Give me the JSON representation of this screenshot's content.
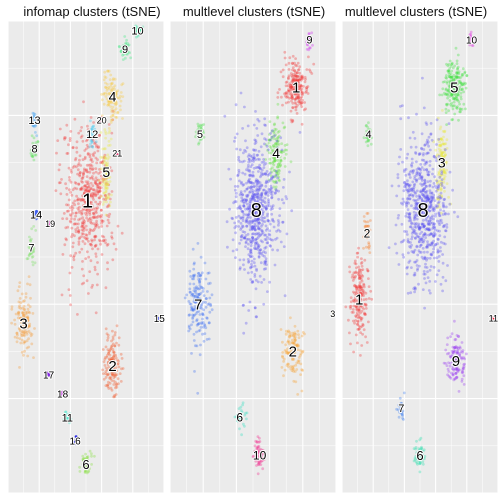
{
  "chart_data": [
    {
      "type": "scatter",
      "title": "infomap clusters (tSNE)",
      "xlim": [
        0,
        100
      ],
      "ylim": [
        0,
        100
      ],
      "grid": true,
      "clusters": [
        {
          "label": "1",
          "color": "#f23a3a",
          "cx": 51,
          "cy": 62,
          "sx": 13,
          "sy": 13,
          "n": 520,
          "font": 20
        },
        {
          "label": "2",
          "color": "#f25a2a",
          "cx": 67,
          "cy": 27,
          "sx": 5,
          "sy": 5,
          "n": 130,
          "font": 15
        },
        {
          "label": "3",
          "color": "#f39a3a",
          "cx": 10,
          "cy": 36,
          "sx": 5,
          "sy": 6,
          "n": 120,
          "font": 15
        },
        {
          "label": "4",
          "color": "#f5c842",
          "cx": 67,
          "cy": 84,
          "sx": 5,
          "sy": 4,
          "n": 110,
          "font": 14
        },
        {
          "label": "5",
          "color": "#e8e84a",
          "cx": 63,
          "cy": 68,
          "sx": 3,
          "sy": 6,
          "n": 90,
          "font": 14
        },
        {
          "label": "6",
          "color": "#88e040",
          "cx": 50,
          "cy": 6,
          "sx": 3,
          "sy": 2,
          "n": 45,
          "font": 13
        },
        {
          "label": "7",
          "color": "#78e060",
          "cx": 15,
          "cy": 52,
          "sx": 2,
          "sy": 3,
          "n": 30,
          "font": 11
        },
        {
          "label": "8",
          "color": "#50e050",
          "cx": 17,
          "cy": 73,
          "sx": 2,
          "sy": 2,
          "n": 25,
          "font": 11
        },
        {
          "label": "9",
          "color": "#40e880",
          "cx": 75,
          "cy": 94,
          "sx": 3,
          "sy": 2,
          "n": 40,
          "font": 11
        },
        {
          "label": "10",
          "color": "#30e8a0",
          "cx": 83,
          "cy": 98,
          "sx": 2,
          "sy": 1,
          "n": 25,
          "font": 11
        },
        {
          "label": "11",
          "color": "#30e8c8",
          "cx": 38,
          "cy": 16,
          "sx": 2,
          "sy": 1,
          "n": 20,
          "font": 11
        },
        {
          "label": "12",
          "color": "#40c8f0",
          "cx": 54,
          "cy": 76,
          "sx": 2,
          "sy": 3,
          "n": 25,
          "font": 11
        },
        {
          "label": "13",
          "color": "#40a0f0",
          "cx": 17,
          "cy": 79,
          "sx": 1,
          "sy": 2,
          "n": 22,
          "font": 11
        },
        {
          "label": "14",
          "color": "#4060f0",
          "cx": 18,
          "cy": 59,
          "sx": 1,
          "sy": 1,
          "n": 8,
          "font": 11
        },
        {
          "label": "15",
          "color": "#2030f0",
          "cx": 97,
          "cy": 37,
          "sx": 0.5,
          "sy": 0.5,
          "n": 3,
          "font": 10
        },
        {
          "label": "16",
          "color": "#2020e0",
          "cx": 43,
          "cy": 11,
          "sx": 0.8,
          "sy": 0.8,
          "n": 6,
          "font": 10
        },
        {
          "label": "17",
          "color": "#8020e0",
          "cx": 26,
          "cy": 25,
          "sx": 0.5,
          "sy": 0.5,
          "n": 3,
          "font": 10
        },
        {
          "label": "18",
          "color": "#c020e0",
          "cx": 35,
          "cy": 21,
          "sx": 0.5,
          "sy": 0.5,
          "n": 3,
          "font": 10
        },
        {
          "label": "19",
          "color": "#e020c0",
          "cx": 27,
          "cy": 57,
          "sx": 0.5,
          "sy": 0.5,
          "n": 3,
          "font": 9
        },
        {
          "label": "20",
          "color": "#e02090",
          "cx": 60,
          "cy": 79,
          "sx": 0.5,
          "sy": 0.5,
          "n": 3,
          "font": 9
        },
        {
          "label": "21",
          "color": "#e02060",
          "cx": 70,
          "cy": 72,
          "sx": 0.5,
          "sy": 0.5,
          "n": 3,
          "font": 9
        }
      ]
    },
    {
      "type": "scatter",
      "title": "multlevel clusters (tSNE)",
      "xlim": [
        0,
        100
      ],
      "ylim": [
        0,
        100
      ],
      "grid": true,
      "clusters": [
        {
          "label": "1",
          "color": "#f23a3a",
          "cx": 76,
          "cy": 86,
          "sx": 6,
          "sy": 5,
          "n": 220,
          "font": 15
        },
        {
          "label": "2",
          "color": "#f5a030",
          "cx": 74,
          "cy": 30,
          "sx": 5,
          "sy": 5,
          "n": 120,
          "font": 15
        },
        {
          "label": "3",
          "color": "#e8e830",
          "cx": 98,
          "cy": 38,
          "sx": 0.5,
          "sy": 0.5,
          "n": 3,
          "font": 9
        },
        {
          "label": "4",
          "color": "#60e040",
          "cx": 64,
          "cy": 72,
          "sx": 5,
          "sy": 6,
          "n": 130,
          "font": 14
        },
        {
          "label": "5",
          "color": "#50e050",
          "cx": 18,
          "cy": 76,
          "sx": 2,
          "sy": 2,
          "n": 30,
          "font": 11
        },
        {
          "label": "6",
          "color": "#30e0c0",
          "cx": 42,
          "cy": 16,
          "sx": 3,
          "sy": 3,
          "n": 25,
          "font": 12
        },
        {
          "label": "7",
          "color": "#4070f0",
          "cx": 17,
          "cy": 40,
          "sx": 6,
          "sy": 8,
          "n": 170,
          "font": 15
        },
        {
          "label": "8",
          "color": "#5a50f0",
          "cx": 52,
          "cy": 60,
          "sx": 12,
          "sy": 13,
          "n": 650,
          "font": 20
        },
        {
          "label": "9",
          "color": "#d030f0",
          "cx": 84,
          "cy": 96,
          "sx": 1.5,
          "sy": 1.5,
          "n": 25,
          "font": 11
        },
        {
          "label": "10",
          "color": "#f03090",
          "cx": 54,
          "cy": 8,
          "sx": 3,
          "sy": 3,
          "n": 60,
          "font": 12
        }
      ]
    },
    {
      "type": "scatter",
      "title": "multlevel clusters (tSNE)",
      "xlim": [
        0,
        100
      ],
      "ylim": [
        0,
        100
      ],
      "grid": true,
      "clusters": [
        {
          "label": "1",
          "color": "#f23a3a",
          "cx": 11,
          "cy": 41,
          "sx": 5,
          "sy": 7,
          "n": 190,
          "font": 15
        },
        {
          "label": "2",
          "color": "#f58030",
          "cx": 16,
          "cy": 55,
          "sx": 2,
          "sy": 4,
          "n": 30,
          "font": 12
        },
        {
          "label": "3",
          "color": "#e8e840",
          "cx": 64,
          "cy": 70,
          "sx": 3,
          "sy": 7,
          "n": 120,
          "font": 14
        },
        {
          "label": "4",
          "color": "#50e050",
          "cx": 17,
          "cy": 76,
          "sx": 2,
          "sy": 2,
          "n": 30,
          "font": 11
        },
        {
          "label": "5",
          "color": "#40e040",
          "cx": 72,
          "cy": 86,
          "sx": 6,
          "sy": 5,
          "n": 200,
          "font": 15
        },
        {
          "label": "6",
          "color": "#30e0b0",
          "cx": 50,
          "cy": 8,
          "sx": 3,
          "sy": 3,
          "n": 50,
          "font": 13
        },
        {
          "label": "7",
          "color": "#4080f0",
          "cx": 38,
          "cy": 18,
          "sx": 2,
          "sy": 2,
          "n": 20,
          "font": 11
        },
        {
          "label": "8",
          "color": "#5a50f0",
          "cx": 52,
          "cy": 60,
          "sx": 12,
          "sy": 13,
          "n": 650,
          "font": 20
        },
        {
          "label": "9",
          "color": "#9a40f0",
          "cx": 73,
          "cy": 28,
          "sx": 5,
          "sy": 5,
          "n": 120,
          "font": 15
        },
        {
          "label": "10",
          "color": "#e030e0",
          "cx": 83,
          "cy": 96,
          "sx": 1.5,
          "sy": 1.5,
          "n": 25,
          "font": 10
        },
        {
          "label": "11",
          "color": "#f02040",
          "cx": 97,
          "cy": 37,
          "sx": 0.5,
          "sy": 0.5,
          "n": 3,
          "font": 9
        }
      ]
    }
  ]
}
